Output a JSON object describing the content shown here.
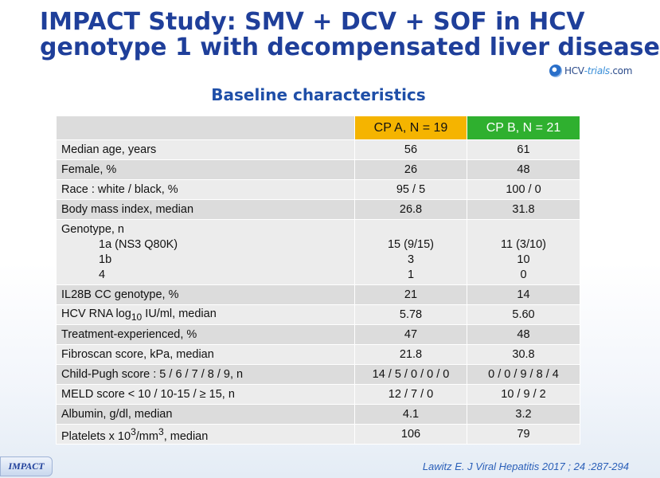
{
  "title": {
    "line1": "IMPACT Study: SMV + DCV + SOF in HCV",
    "line2": "genotype 1 with decompensated liver disease"
  },
  "logo": {
    "prefix": "HCV",
    "middle": "-trials",
    "suffix": ".com"
  },
  "subtitle": "Baseline characteristics",
  "table": {
    "header": {
      "empty": "",
      "col_a": "CP A, N = 19",
      "col_b": "CP B, N = 21"
    },
    "header_colors": {
      "col_a": "#f5b400",
      "col_b": "#2fb02f"
    },
    "rows": [
      {
        "label": "Median age, years",
        "a": "56",
        "b": "61"
      },
      {
        "label": "Female, %",
        "a": "26",
        "b": "48"
      },
      {
        "label": "Race : white / black, %",
        "a": "95 / 5",
        "b": "100 / 0"
      },
      {
        "label": "Body mass index, median",
        "a": "26.8",
        "b": "31.8"
      },
      {
        "label": "Genotype, n",
        "sub": [
          "1a (NS3 Q80K)",
          "1b",
          "4"
        ],
        "a": [
          "15 (9/15)",
          "3",
          "1"
        ],
        "b": [
          "11 (3/10)",
          "10",
          "0"
        ]
      },
      {
        "label": "IL28B CC genotype, %",
        "a": "21",
        "b": "14"
      },
      {
        "label_pre": "HCV RNA log",
        "label_sub": "10",
        "label_post": " IU/ml, median",
        "a": "5.78",
        "b": "5.60"
      },
      {
        "label": "Treatment-experienced, %",
        "a": "47",
        "b": "48"
      },
      {
        "label": "Fibroscan score, kPa, median",
        "a": "21.8",
        "b": "30.8"
      },
      {
        "label": "Child-Pugh score : 5 / 6 / 7 / 8 / 9, n",
        "a": "14 / 5 / 0 / 0 / 0",
        "b": "0 / 0 / 9 / 8 / 4"
      },
      {
        "label": "MELD score < 10 / 10-15 / ≥ 15, n",
        "a": "12 / 7 / 0",
        "b": "10 / 9 / 2"
      },
      {
        "label": "Albumin, g/dl, median",
        "a": "4.1",
        "b": "3.2"
      },
      {
        "label_pre": "Platelets x 10",
        "label_sup1": "3",
        "label_mid": "/mm",
        "label_sup2": "3",
        "label_post": ", median",
        "a": "106",
        "b": "79"
      }
    ]
  },
  "footer": {
    "badge": "IMPACT",
    "citation": "Lawitz  E. J Viral Hepatitis 2017 ; 24 :287-294"
  }
}
